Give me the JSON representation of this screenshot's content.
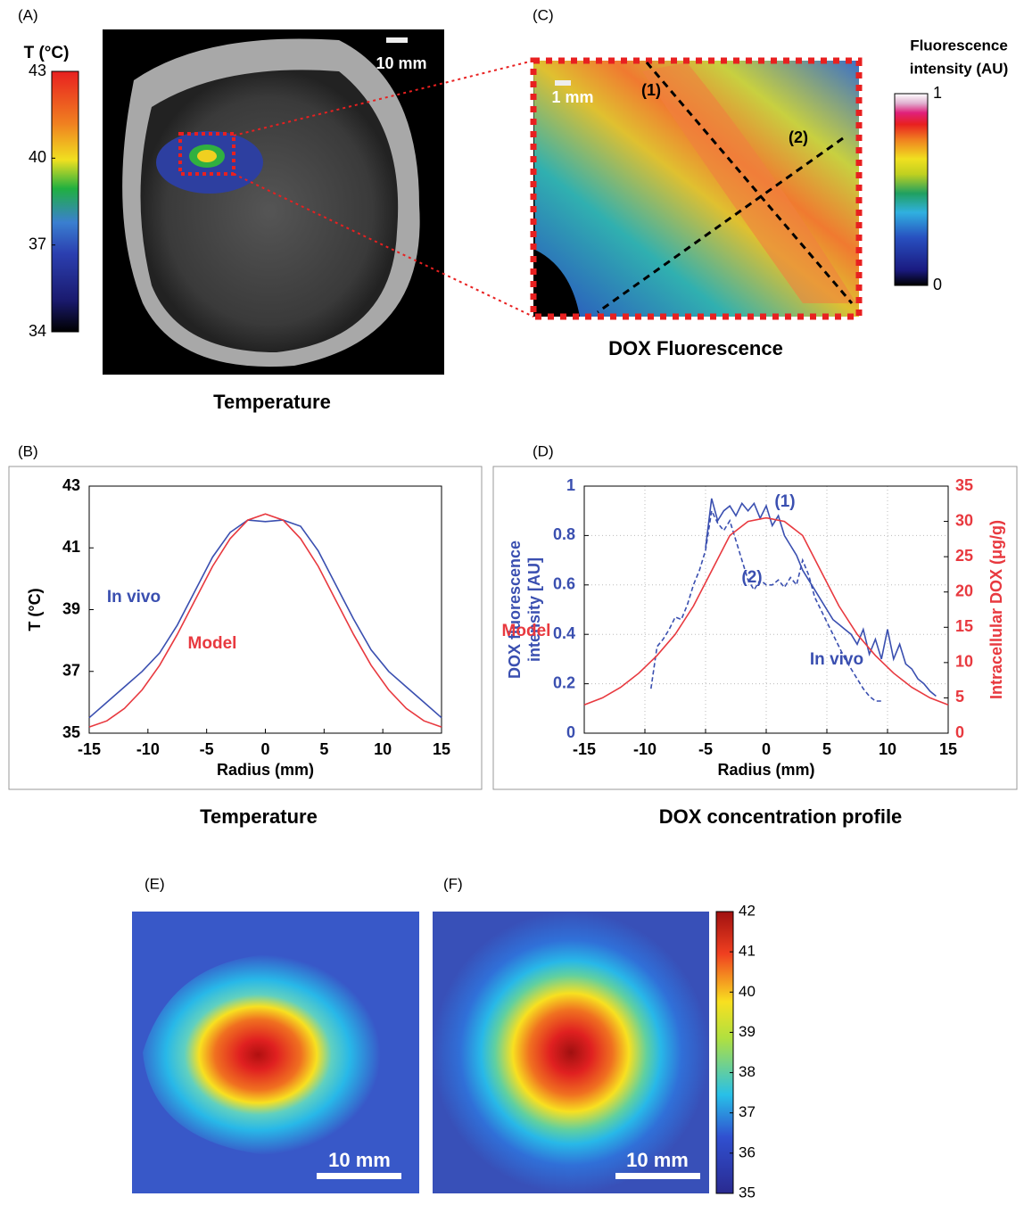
{
  "panels": {
    "a": {
      "label": "(A)",
      "caption": "Temperature",
      "scale_bar": "10 mm",
      "colorbar": {
        "title": "T (°C)",
        "clim": [
          34,
          43
        ],
        "ticks": [
          34,
          37,
          40,
          43
        ]
      }
    },
    "c": {
      "label": "(C)",
      "caption": "DOX Fluorescence",
      "scale_bar": "1 mm",
      "line_labels": [
        "(1)",
        "(2)"
      ],
      "colorbar": {
        "title": [
          "Fluorescence",
          "intensity (AU)"
        ],
        "clim": [
          0,
          1
        ],
        "ticks": [
          0,
          1
        ]
      }
    },
    "e": {
      "label": "(E)",
      "scale_bar": "10 mm"
    },
    "f": {
      "label": "(F)",
      "scale_bar": "10 mm",
      "colorbar": {
        "clim": [
          35,
          42
        ],
        "ticks": [
          35,
          36,
          37,
          38,
          39,
          40,
          41,
          42
        ]
      }
    }
  },
  "chart_data": [
    {
      "type": "line",
      "label": "(B)",
      "caption": "Temperature",
      "x_label": "Radius (mm)",
      "y_label": "T (°C)",
      "xlim": [
        -15,
        15
      ],
      "xticks": [
        -15,
        -10,
        -5,
        0,
        5,
        10,
        15
      ],
      "ylim": [
        35,
        43
      ],
      "yticks": [
        35,
        37,
        39,
        41,
        43
      ],
      "grid": false,
      "x": [
        -15,
        -13.5,
        -12,
        -10.5,
        -9,
        -7.5,
        -6,
        -4.5,
        -3,
        -1.5,
        0,
        1.5,
        3,
        4.5,
        6,
        7.5,
        9,
        10.5,
        12,
        13.5,
        15
      ],
      "series": [
        {
          "name": "In vivo",
          "color": "#3a4fb0",
          "values": [
            35.5,
            36.0,
            36.5,
            37.0,
            37.6,
            38.5,
            39.6,
            40.7,
            41.5,
            41.9,
            41.85,
            41.9,
            41.7,
            40.9,
            39.8,
            38.7,
            37.7,
            37.0,
            36.5,
            36.0,
            35.5
          ]
        },
        {
          "name": "Model",
          "color": "#e8393f",
          "values": [
            35.2,
            35.4,
            35.8,
            36.4,
            37.2,
            38.2,
            39.3,
            40.4,
            41.3,
            41.9,
            42.1,
            41.9,
            41.3,
            40.4,
            39.3,
            38.2,
            37.2,
            36.4,
            35.8,
            35.4,
            35.2
          ]
        }
      ]
    },
    {
      "type": "line",
      "label": "(D)",
      "caption": "DOX concentration profile",
      "x_label": "Radius (mm)",
      "y_label": [
        "DOX  fluorescence",
        "intensity [AU]"
      ],
      "y2_label": "Intracellular DOX (μg/g)",
      "annotations": [
        "In vivo"
      ],
      "xlim": [
        -15,
        15
      ],
      "xticks": [
        -15,
        -10,
        -5,
        0,
        5,
        10,
        15
      ],
      "ylim": [
        0,
        1
      ],
      "yticks": [
        0,
        0.2,
        0.4,
        0.6,
        0.8,
        1
      ],
      "y2lim": [
        0,
        35
      ],
      "y2ticks": [
        0,
        5,
        10,
        15,
        20,
        25,
        30,
        35
      ],
      "grid": true,
      "series": [
        {
          "name": "(1)",
          "color": "#3a4fb0",
          "dash": false,
          "x": [
            -5,
            -4.5,
            -4,
            -3.5,
            -3,
            -2.5,
            -2,
            -1.5,
            -1,
            -0.5,
            0,
            0.5,
            1,
            1.5,
            2,
            2.5,
            3,
            3.5,
            4,
            4.5,
            5,
            5.5,
            6,
            6.5,
            7,
            7.5,
            8,
            8.5,
            9,
            9.5,
            10,
            10.5,
            11,
            11.5,
            12,
            12.5,
            13,
            13.5,
            14
          ],
          "values": [
            0.75,
            0.95,
            0.86,
            0.9,
            0.92,
            0.88,
            0.93,
            0.9,
            0.93,
            0.87,
            0.92,
            0.84,
            0.88,
            0.8,
            0.76,
            0.72,
            0.66,
            0.62,
            0.58,
            0.54,
            0.5,
            0.46,
            0.44,
            0.42,
            0.4,
            0.36,
            0.42,
            0.32,
            0.38,
            0.3,
            0.42,
            0.3,
            0.36,
            0.28,
            0.26,
            0.22,
            0.2,
            0.17,
            0.15
          ]
        },
        {
          "name": "(2)",
          "color": "#3a4fb0",
          "dash": true,
          "x": [
            -9.5,
            -9,
            -8.5,
            -8,
            -7.5,
            -7,
            -6.5,
            -6,
            -5.5,
            -5,
            -4.5,
            -4,
            -3.5,
            -3,
            -2.5,
            -2,
            -1.5,
            -1,
            -0.5,
            0,
            0.5,
            1,
            1.5,
            2,
            2.5,
            3,
            3.5,
            4,
            4.5,
            5,
            5.5,
            6,
            6.5,
            7,
            7.5,
            8,
            8.5,
            9,
            9.5
          ],
          "values": [
            0.18,
            0.35,
            0.38,
            0.42,
            0.47,
            0.46,
            0.52,
            0.6,
            0.66,
            0.74,
            0.9,
            0.85,
            0.82,
            0.86,
            0.78,
            0.7,
            0.62,
            0.58,
            0.62,
            0.6,
            0.6,
            0.62,
            0.59,
            0.63,
            0.6,
            0.7,
            0.64,
            0.55,
            0.5,
            0.45,
            0.4,
            0.35,
            0.3,
            0.26,
            0.22,
            0.18,
            0.15,
            0.13,
            0.13
          ]
        },
        {
          "name": "Model",
          "color": "#e8393f",
          "dash": false,
          "axis": "y2",
          "x": [
            -15,
            -13.5,
            -12,
            -10.5,
            -9,
            -7.5,
            -6,
            -4.5,
            -3,
            -1.5,
            0,
            1.5,
            3,
            4.5,
            6,
            7.5,
            9,
            10.5,
            12,
            13.5,
            15
          ],
          "values": [
            4,
            5,
            6.5,
            8.5,
            11,
            14,
            18,
            23,
            28,
            30,
            30.5,
            30,
            28,
            23,
            18,
            14,
            11,
            8.5,
            6.5,
            5,
            4
          ]
        }
      ]
    }
  ]
}
